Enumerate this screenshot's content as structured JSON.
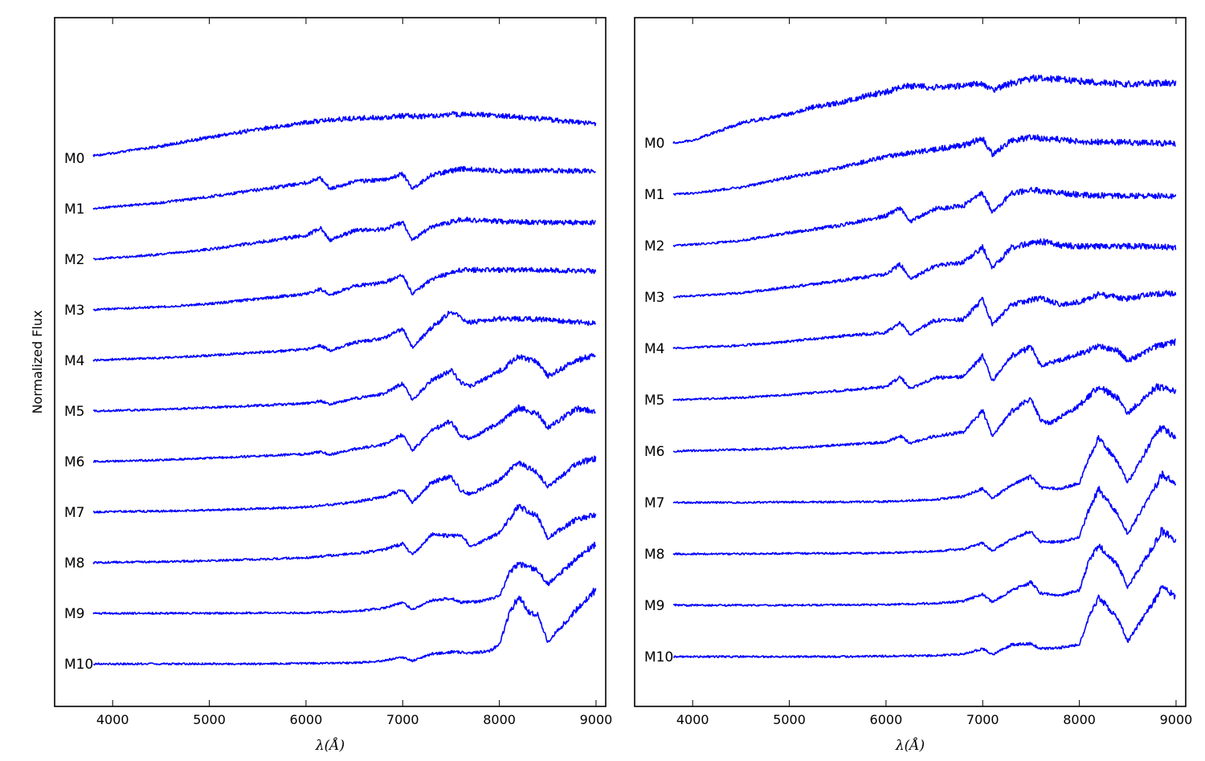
{
  "chart_data": [
    {
      "type": "line",
      "panel": "left",
      "title": "",
      "xlabel": "λ(Å)",
      "ylabel": "Normalized Flux",
      "xlim": [
        3400,
        9100
      ],
      "xticks": [
        4000,
        5000,
        6000,
        7000,
        8000,
        9000
      ],
      "grid": false,
      "legend": "none",
      "line_color": "#0000ff",
      "series": [
        {
          "name": "M0",
          "x": [
            3800,
            4000,
            4500,
            5000,
            5500,
            6000,
            6200,
            6500,
            6800,
            7000,
            7200,
            7500,
            7800,
            8000,
            8200,
            8500,
            8800,
            9000
          ],
          "y": [
            0.05,
            0.1,
            0.24,
            0.42,
            0.58,
            0.72,
            0.76,
            0.8,
            0.82,
            0.85,
            0.84,
            0.88,
            0.88,
            0.86,
            0.82,
            0.78,
            0.72,
            0.7
          ]
        },
        {
          "name": "M1",
          "x": [
            3800,
            4000,
            4500,
            5000,
            5500,
            6000,
            6150,
            6250,
            6500,
            6800,
            7000,
            7100,
            7300,
            7600,
            8000,
            8500,
            9000
          ],
          "y": [
            0.0,
            0.04,
            0.12,
            0.24,
            0.38,
            0.52,
            0.62,
            0.4,
            0.55,
            0.58,
            0.7,
            0.4,
            0.68,
            0.8,
            0.76,
            0.76,
            0.76
          ]
        },
        {
          "name": "M2",
          "x": [
            3800,
            4000,
            4500,
            5000,
            5500,
            6000,
            6150,
            6250,
            6500,
            6800,
            7000,
            7100,
            7300,
            7600,
            8000,
            8500,
            9000
          ],
          "y": [
            0.0,
            0.03,
            0.1,
            0.2,
            0.34,
            0.48,
            0.62,
            0.38,
            0.58,
            0.6,
            0.74,
            0.38,
            0.66,
            0.8,
            0.76,
            0.74,
            0.74
          ]
        },
        {
          "name": "M3",
          "x": [
            3800,
            4000,
            4500,
            5000,
            5500,
            6000,
            6150,
            6250,
            6500,
            6800,
            7000,
            7100,
            7300,
            7600,
            8000,
            8500,
            9000
          ],
          "y": [
            0.0,
            0.02,
            0.06,
            0.12,
            0.22,
            0.32,
            0.42,
            0.3,
            0.48,
            0.54,
            0.7,
            0.32,
            0.62,
            0.8,
            0.8,
            0.8,
            0.78
          ]
        },
        {
          "name": "M4",
          "x": [
            3800,
            4000,
            4500,
            5000,
            5500,
            6000,
            6150,
            6250,
            6500,
            6800,
            7000,
            7100,
            7300,
            7500,
            7700,
            8000,
            8500,
            9000
          ],
          "y": [
            0.0,
            0.02,
            0.05,
            0.1,
            0.16,
            0.22,
            0.3,
            0.2,
            0.36,
            0.44,
            0.64,
            0.26,
            0.66,
            0.98,
            0.76,
            0.84,
            0.82,
            0.74
          ]
        },
        {
          "name": "M5",
          "x": [
            3800,
            4000,
            4500,
            5000,
            5500,
            6000,
            6150,
            6250,
            6500,
            6800,
            7000,
            7100,
            7300,
            7500,
            7600,
            7700,
            8000,
            8200,
            8400,
            8500,
            8800,
            9000
          ],
          "y": [
            0.0,
            0.01,
            0.03,
            0.07,
            0.11,
            0.15,
            0.2,
            0.14,
            0.25,
            0.34,
            0.56,
            0.22,
            0.62,
            0.82,
            0.58,
            0.5,
            0.8,
            1.1,
            0.98,
            0.7,
            1.02,
            1.12
          ]
        },
        {
          "name": "M6",
          "x": [
            3800,
            4000,
            4500,
            5000,
            5500,
            6000,
            6150,
            6250,
            6500,
            6800,
            7000,
            7100,
            7300,
            7500,
            7600,
            7700,
            8000,
            8200,
            8400,
            8500,
            8800,
            9000
          ],
          "y": [
            0.0,
            0.01,
            0.03,
            0.07,
            0.11,
            0.15,
            0.2,
            0.14,
            0.25,
            0.34,
            0.54,
            0.22,
            0.62,
            0.82,
            0.52,
            0.46,
            0.78,
            1.08,
            0.96,
            0.68,
            1.06,
            1.02
          ]
        },
        {
          "name": "M7",
          "x": [
            3800,
            4000,
            4500,
            5000,
            5500,
            6000,
            6200,
            6500,
            6800,
            7000,
            7100,
            7300,
            7500,
            7600,
            7700,
            8000,
            8200,
            8400,
            8500,
            8800,
            9000
          ],
          "y": [
            0.0,
            0.01,
            0.02,
            0.04,
            0.07,
            0.1,
            0.14,
            0.2,
            0.3,
            0.46,
            0.2,
            0.6,
            0.72,
            0.44,
            0.36,
            0.64,
            1.0,
            0.78,
            0.5,
            0.98,
            1.08
          ]
        },
        {
          "name": "M8",
          "x": [
            3800,
            4000,
            4500,
            5000,
            5500,
            6000,
            6200,
            6500,
            6800,
            7000,
            7100,
            7300,
            7500,
            7600,
            7700,
            7800,
            8000,
            8200,
            8400,
            8500,
            8800,
            9000
          ],
          "y": [
            0.0,
            0.01,
            0.02,
            0.04,
            0.07,
            0.1,
            0.14,
            0.18,
            0.26,
            0.38,
            0.16,
            0.56,
            0.54,
            0.56,
            0.34,
            0.4,
            0.6,
            1.14,
            0.92,
            0.5,
            0.88,
            0.96
          ]
        },
        {
          "name": "M9",
          "x": [
            3800,
            4000,
            4500,
            5000,
            5500,
            6000,
            6500,
            6800,
            7000,
            7100,
            7300,
            7500,
            7600,
            7800,
            8000,
            8100,
            8200,
            8400,
            8500,
            8800,
            9000
          ],
          "y": [
            0.0,
            0.0,
            0.0,
            0.0,
            0.01,
            0.01,
            0.04,
            0.1,
            0.22,
            0.08,
            0.26,
            0.3,
            0.22,
            0.24,
            0.34,
            0.8,
            1.0,
            0.86,
            0.58,
            1.1,
            1.4
          ]
        },
        {
          "name": "M10",
          "x": [
            3800,
            4000,
            4500,
            5000,
            5500,
            6000,
            6500,
            6800,
            7000,
            7100,
            7300,
            7500,
            7700,
            7900,
            8000,
            8100,
            8200,
            8300,
            8400,
            8500,
            8800,
            9000
          ],
          "y": [
            0.0,
            0.0,
            0.0,
            0.0,
            0.0,
            0.01,
            0.02,
            0.06,
            0.14,
            0.06,
            0.2,
            0.24,
            0.22,
            0.26,
            0.4,
            1.0,
            1.36,
            1.06,
            0.98,
            0.44,
            1.1,
            1.5
          ]
        }
      ]
    },
    {
      "type": "line",
      "panel": "right",
      "title": "",
      "xlabel": "λ(Å)",
      "ylabel": "",
      "xlim": [
        3400,
        9100
      ],
      "xticks": [
        4000,
        5000,
        6000,
        7000,
        8000,
        9000
      ],
      "grid": false,
      "legend": "none",
      "line_color": "#0000ff",
      "series": [
        {
          "name": "M0",
          "x": [
            3800,
            4000,
            4500,
            5000,
            5200,
            5500,
            5800,
            6000,
            6200,
            6500,
            6800,
            7000,
            7100,
            7300,
            7500,
            7800,
            8000,
            8300,
            8500,
            8800,
            9000
          ],
          "y": [
            0.0,
            0.05,
            0.4,
            0.58,
            0.7,
            0.8,
            0.95,
            1.02,
            1.14,
            1.12,
            1.14,
            1.2,
            1.06,
            1.2,
            1.3,
            1.28,
            1.24,
            1.2,
            1.18,
            1.2,
            1.2
          ]
        },
        {
          "name": "M1",
          "x": [
            3800,
            4000,
            4500,
            5000,
            5500,
            6000,
            6200,
            6500,
            6800,
            7000,
            7100,
            7300,
            7500,
            7800,
            8000,
            8500,
            9000
          ],
          "y": [
            0.0,
            0.02,
            0.14,
            0.34,
            0.52,
            0.76,
            0.82,
            0.9,
            0.98,
            1.12,
            0.8,
            1.08,
            1.14,
            1.1,
            1.06,
            1.04,
            1.02
          ]
        },
        {
          "name": "M2",
          "x": [
            3800,
            4000,
            4500,
            5000,
            5500,
            6000,
            6150,
            6250,
            6500,
            6800,
            7000,
            7100,
            7300,
            7500,
            7800,
            8000,
            8500,
            9000
          ],
          "y": [
            0.0,
            0.02,
            0.1,
            0.26,
            0.4,
            0.6,
            0.76,
            0.48,
            0.74,
            0.8,
            1.06,
            0.66,
            1.06,
            1.12,
            1.06,
            1.02,
            1.0,
            1.0
          ]
        },
        {
          "name": "M3",
          "x": [
            3800,
            4000,
            4500,
            5000,
            5500,
            6000,
            6150,
            6250,
            6500,
            6800,
            7000,
            7100,
            7300,
            7600,
            7800,
            8000,
            8500,
            9000
          ],
          "y": [
            0.0,
            0.02,
            0.08,
            0.2,
            0.32,
            0.46,
            0.66,
            0.36,
            0.62,
            0.7,
            1.0,
            0.58,
            1.0,
            1.12,
            1.04,
            1.02,
            1.02,
            1.0
          ]
        },
        {
          "name": "M4",
          "x": [
            3800,
            4000,
            4500,
            5000,
            5500,
            6000,
            6150,
            6250,
            6500,
            6800,
            7000,
            7100,
            7300,
            7600,
            7800,
            8000,
            8200,
            8500,
            8800,
            9000
          ],
          "y": [
            0.0,
            0.02,
            0.06,
            0.14,
            0.24,
            0.32,
            0.52,
            0.28,
            0.56,
            0.58,
            0.98,
            0.48,
            0.88,
            1.02,
            0.88,
            0.94,
            1.08,
            1.0,
            1.1,
            1.1
          ]
        },
        {
          "name": "M5",
          "x": [
            3800,
            4000,
            4500,
            5000,
            5500,
            6000,
            6150,
            6250,
            6500,
            6800,
            7000,
            7100,
            7300,
            7500,
            7600,
            7800,
            8000,
            8200,
            8400,
            8500,
            8800,
            9000
          ],
          "y": [
            0.0,
            0.01,
            0.04,
            0.1,
            0.18,
            0.26,
            0.46,
            0.22,
            0.44,
            0.46,
            0.88,
            0.38,
            0.88,
            1.06,
            0.68,
            0.8,
            0.92,
            1.08,
            0.98,
            0.78,
            1.08,
            1.16
          ]
        },
        {
          "name": "M6",
          "x": [
            3800,
            4000,
            4500,
            5000,
            5500,
            6000,
            6150,
            6250,
            6500,
            6800,
            7000,
            7100,
            7300,
            7500,
            7600,
            7700,
            8000,
            8200,
            8400,
            8500,
            8800,
            9000
          ],
          "y": [
            0.0,
            0.01,
            0.03,
            0.06,
            0.12,
            0.18,
            0.3,
            0.16,
            0.3,
            0.38,
            0.82,
            0.3,
            0.8,
            1.06,
            0.62,
            0.56,
            0.92,
            1.3,
            1.06,
            0.76,
            1.3,
            1.2
          ]
        },
        {
          "name": "M7",
          "x": [
            3800,
            4000,
            4500,
            5000,
            5500,
            6000,
            6500,
            6800,
            7000,
            7100,
            7300,
            7500,
            7600,
            7800,
            8000,
            8100,
            8200,
            8400,
            8500,
            8800,
            8850,
            9000
          ],
          "y": [
            0.0,
            0.0,
            0.0,
            0.01,
            0.01,
            0.02,
            0.06,
            0.12,
            0.28,
            0.08,
            0.36,
            0.52,
            0.3,
            0.28,
            0.38,
            0.9,
            1.3,
            0.8,
            0.4,
            1.4,
            1.5,
            1.3
          ]
        },
        {
          "name": "M8",
          "x": [
            3800,
            4000,
            4500,
            5000,
            5500,
            6000,
            6500,
            6800,
            7000,
            7100,
            7300,
            7500,
            7600,
            7800,
            8000,
            8100,
            8200,
            8400,
            8500,
            8800,
            8850,
            9000
          ],
          "y": [
            0.0,
            0.0,
            0.0,
            0.01,
            0.01,
            0.02,
            0.05,
            0.1,
            0.22,
            0.06,
            0.3,
            0.46,
            0.24,
            0.24,
            0.34,
            0.9,
            1.3,
            0.8,
            0.4,
            1.4,
            1.6,
            1.4
          ]
        },
        {
          "name": "M9",
          "x": [
            3800,
            4000,
            4500,
            5000,
            5500,
            6000,
            6500,
            6800,
            7000,
            7100,
            7300,
            7500,
            7600,
            7800,
            8000,
            8100,
            8200,
            8400,
            8500,
            8800,
            8850,
            9000
          ],
          "y": [
            0.0,
            0.0,
            0.0,
            0.0,
            0.01,
            0.01,
            0.04,
            0.08,
            0.22,
            0.06,
            0.3,
            0.46,
            0.24,
            0.2,
            0.3,
            0.9,
            1.2,
            0.8,
            0.36,
            1.3,
            1.5,
            1.3
          ]
        },
        {
          "name": "M10",
          "x": [
            3800,
            4000,
            4500,
            5000,
            5500,
            6000,
            6500,
            6800,
            7000,
            7100,
            7300,
            7500,
            7600,
            7800,
            8000,
            8100,
            8200,
            8400,
            8500,
            8800,
            8850,
            9000
          ],
          "y": [
            0.0,
            0.0,
            0.0,
            0.0,
            0.0,
            0.01,
            0.02,
            0.05,
            0.16,
            0.04,
            0.24,
            0.26,
            0.16,
            0.18,
            0.24,
            0.8,
            1.2,
            0.76,
            0.3,
            1.2,
            1.4,
            1.2
          ]
        }
      ]
    }
  ]
}
